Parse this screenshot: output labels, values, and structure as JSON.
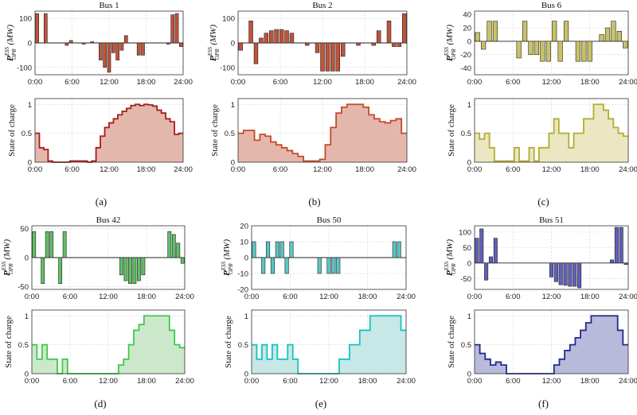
{
  "chart_data": [
    {
      "id": "a",
      "label": "(a)",
      "title": "Bus 1",
      "type": "bar",
      "color": "#c0533a",
      "fill": "#e2b3a8",
      "line": "#a51f1a",
      "bar": {
        "ylabel_base": "P",
        "ylabel_sup": "ESS",
        "ylabel_sub": "OPR",
        "ylabel_unit": "(MW)",
        "ylim": [
          -130,
          130
        ],
        "yticks": [
          -100,
          0,
          100
        ],
        "xlim": [
          0,
          24
        ],
        "xticks": [
          "0:00",
          "6:00",
          "12:00",
          "18:00",
          "24:00"
        ],
        "values": [
          120,
          0,
          120,
          0,
          0,
          0,
          0,
          -10,
          10,
          0,
          0,
          -5,
          0,
          5,
          0,
          -70,
          -100,
          -120,
          -40,
          -70,
          -30,
          30,
          0,
          0,
          -50,
          -50,
          0,
          0,
          0,
          0,
          0,
          -5,
          115,
          120,
          -15
        ]
      },
      "soc": {
        "ylabel": "State of charge",
        "ylim": [
          0,
          1.1
        ],
        "yticks": [
          0,
          0.5,
          1
        ],
        "xlim": [
          0,
          24
        ],
        "xticks": [
          "0:00",
          "6:00",
          "12:00",
          "18:00",
          "24:00"
        ],
        "values": [
          0.5,
          0.25,
          0.22,
          0.02,
          0,
          0,
          0,
          0,
          0.02,
          0.02,
          0.02,
          0.02,
          0,
          0.02,
          0.25,
          0.45,
          0.6,
          0.68,
          0.75,
          0.82,
          0.88,
          0.93,
          0.98,
          1,
          0.98,
          1,
          0.99,
          0.97,
          0.9,
          0.85,
          0.75,
          0.7,
          0.48,
          0.5
        ]
      }
    },
    {
      "id": "b",
      "label": "(b)",
      "title": "Bus 2",
      "type": "bar",
      "color": "#c0533a",
      "fill": "#e2b3a8",
      "line": "#c44a2e",
      "bar": {
        "ylabel_base": "P",
        "ylabel_sup": "ESS",
        "ylabel_sub": "OPR",
        "ylabel_unit": "(MW)",
        "ylim": [
          -130,
          130
        ],
        "yticks": [
          -100,
          0,
          100
        ],
        "xlim": [
          0,
          24
        ],
        "xticks": [
          "0:00",
          "6:00",
          "12:00",
          "18:00",
          "24:00"
        ],
        "values": [
          -30,
          0,
          90,
          -85,
          20,
          40,
          50,
          55,
          55,
          50,
          40,
          0,
          0,
          -10,
          0,
          -40,
          -115,
          -115,
          -115,
          -115,
          -55,
          0,
          0,
          -10,
          0,
          0,
          -10,
          50,
          0,
          90,
          -15,
          -15,
          120
        ]
      },
      "soc": {
        "ylabel": "State of charge",
        "ylim": [
          0,
          1.1
        ],
        "yticks": [
          0,
          0.5,
          1
        ],
        "xlim": [
          0,
          24
        ],
        "xticks": [
          "0:00",
          "6:00",
          "12:00",
          "18:00",
          "24:00"
        ],
        "values": [
          0.5,
          0.55,
          0.55,
          0.38,
          0.48,
          0.45,
          0.35,
          0.3,
          0.25,
          0.2,
          0.15,
          0.1,
          0.02,
          0.02,
          0.02,
          0.05,
          0.3,
          0.6,
          0.85,
          0.95,
          1,
          1,
          1,
          0.95,
          0.82,
          0.75,
          0.7,
          0.68,
          0.72,
          0.75,
          0.5
        ]
      }
    },
    {
      "id": "c",
      "label": "(c)",
      "title": "Bus 6",
      "type": "bar",
      "color": "#c7c266",
      "fill": "#e9e6bf",
      "line": "#b2ad2f",
      "bar": {
        "ylabel_base": "P",
        "ylabel_sup": "ESS",
        "ylabel_sub": "OPR",
        "ylabel_unit": "(MW)",
        "ylim": [
          -50,
          45
        ],
        "yticks": [
          -40,
          -20,
          0,
          20,
          40
        ],
        "xlim": [
          0,
          24
        ],
        "xticks": [
          "0:00",
          "6:00",
          "12:00",
          "18:00",
          "24:00"
        ],
        "values": [
          13,
          -12,
          30,
          30,
          0,
          0,
          0,
          -25,
          30,
          -20,
          -20,
          -30,
          -30,
          30,
          -30,
          30,
          0,
          -30,
          -30,
          -30,
          0,
          10,
          20,
          30,
          15,
          -10
        ]
      },
      "soc": {
        "ylabel": "State of charge",
        "ylim": [
          0,
          1.1
        ],
        "yticks": [
          0,
          0.5,
          1
        ],
        "xlim": [
          0,
          24
        ],
        "xticks": [
          "0:00",
          "6:00",
          "12:00",
          "18:00",
          "24:00"
        ],
        "values": [
          0.5,
          0.4,
          0.5,
          0.25,
          0.02,
          0.02,
          0.02,
          0.02,
          0.25,
          0.02,
          0.02,
          0.25,
          0.02,
          0.25,
          0.25,
          0.5,
          0.75,
          0.5,
          0.5,
          0.25,
          0.5,
          0.5,
          0.75,
          0.75,
          1,
          1,
          0.9,
          0.75,
          0.6,
          0.5,
          0.45
        ]
      }
    },
    {
      "id": "d",
      "label": "(d)",
      "title": "Bus 42",
      "type": "bar",
      "color": "#5fbf64",
      "fill": "#c8e8c7",
      "line": "#3fc94a",
      "bar": {
        "ylabel_base": "P",
        "ylabel_sup": "ESS",
        "ylabel_sub": "OPR",
        "ylabel_unit": "(MW)",
        "ylim": [
          -55,
          55
        ],
        "yticks": [
          -50,
          0,
          50
        ],
        "xlim": [
          0,
          24
        ],
        "xticks": [
          "0:00",
          "6:00",
          "12:00",
          "18:00",
          "24:00"
        ],
        "values": [
          45,
          0,
          -45,
          45,
          45,
          0,
          -45,
          45,
          0,
          0,
          0,
          0,
          0,
          0,
          0,
          0,
          0,
          0,
          0,
          0,
          -30,
          -40,
          -45,
          -45,
          -40,
          -30,
          0,
          0,
          0,
          0,
          0,
          45,
          40,
          25,
          -10
        ]
      },
      "soc": {
        "ylabel": "State of charge",
        "ylim": [
          0,
          1.1
        ],
        "yticks": [
          0,
          0.5,
          1
        ],
        "xlim": [
          0,
          24
        ],
        "xticks": [
          "0:00",
          "6:00",
          "12:00",
          "18:00",
          "24:00"
        ],
        "values": [
          0.5,
          0.25,
          0.5,
          0.25,
          0.25,
          0,
          0.25,
          0,
          0,
          0,
          0,
          0,
          0,
          0,
          0,
          0,
          0,
          0.15,
          0.25,
          0.5,
          0.75,
          0.85,
          1,
          1,
          1,
          1,
          1,
          0.75,
          0.5,
          0.45
        ]
      }
    },
    {
      "id": "e",
      "label": "(e)",
      "title": "Bus 50",
      "type": "bar",
      "color": "#5cc4c4",
      "fill": "#c5e6e6",
      "line": "#16c3c3",
      "bar": {
        "ylabel_base": "P",
        "ylabel_sup": "ESS",
        "ylabel_sub": "OPR",
        "ylabel_unit": "(MW)",
        "ylim": [
          -20,
          20
        ],
        "yticks": [
          -20,
          -10,
          0,
          10,
          20
        ],
        "xlim": [
          0,
          24
        ],
        "xticks": [
          "0:00",
          "6:00",
          "12:00",
          "18:00",
          "24:00"
        ],
        "values": [
          10,
          0,
          -10,
          10,
          -10,
          10,
          10,
          -10,
          10,
          0,
          0,
          0,
          0,
          0,
          -10,
          0,
          -10,
          -10,
          -10,
          0,
          0,
          0,
          0,
          0,
          0,
          0,
          0,
          0,
          0,
          0,
          10,
          10,
          0
        ]
      },
      "soc": {
        "ylabel": "State of charge",
        "ylim": [
          0,
          1.1
        ],
        "yticks": [
          0,
          0.5,
          1
        ],
        "xlim": [
          0,
          24
        ],
        "xticks": [
          "0:00",
          "6:00",
          "12:00",
          "18:00",
          "24:00"
        ],
        "values": [
          0.5,
          0.25,
          0.5,
          0.25,
          0.5,
          0.25,
          0.25,
          0.5,
          0.25,
          0,
          0,
          0,
          0,
          0,
          0,
          0,
          0,
          0.25,
          0.25,
          0.5,
          0.5,
          0.75,
          0.75,
          1,
          1,
          1,
          1,
          1,
          1,
          0.75
        ]
      }
    },
    {
      "id": "f",
      "label": "(f)",
      "title": "Bus 51",
      "type": "bar",
      "color": "#6060b8",
      "fill": "#b5b5da",
      "line": "#232a8c",
      "bar": {
        "ylabel_base": "P",
        "ylabel_sup": "ESS",
        "ylabel_sub": "OPR",
        "ylabel_unit": "(MW)",
        "ylim": [
          -85,
          120
        ],
        "yticks": [
          -50,
          0,
          50,
          100
        ],
        "xlim": [
          0,
          24
        ],
        "xticks": [
          "0:00",
          "6:00",
          "12:00",
          "18:00",
          "24:00"
        ],
        "values": [
          80,
          110,
          -55,
          20,
          80,
          0,
          0,
          0,
          0,
          0,
          0,
          0,
          0,
          0,
          0,
          0,
          -45,
          -60,
          -70,
          -72,
          -75,
          -75,
          -80,
          0,
          0,
          0,
          0,
          0,
          0,
          10,
          115,
          115,
          -5
        ]
      },
      "soc": {
        "ylabel": "State of charge",
        "ylim": [
          0,
          1.1
        ],
        "yticks": [
          0,
          0.5,
          1
        ],
        "xlim": [
          0,
          24
        ],
        "xticks": [
          "0:00",
          "6:00",
          "12:00",
          "18:00",
          "24:00"
        ],
        "values": [
          0.5,
          0.35,
          0.25,
          0.15,
          0.2,
          0.15,
          0,
          0,
          0,
          0,
          0,
          0,
          0,
          0,
          0,
          0.15,
          0.25,
          0.4,
          0.5,
          0.62,
          0.75,
          0.88,
          1,
          1,
          1,
          1,
          1,
          0.75,
          0.5
        ]
      }
    }
  ]
}
